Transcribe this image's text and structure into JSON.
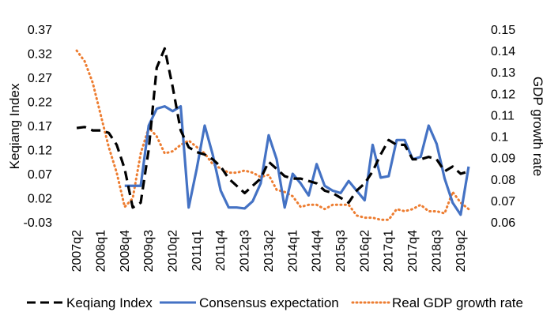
{
  "chart_data": {
    "type": "line",
    "categories": [
      "2007q2",
      "2007q3",
      "2007q4",
      "2008q1",
      "2008q2",
      "2008q3",
      "2008q4",
      "2009q1",
      "2009q2",
      "2009q3",
      "2009q4",
      "2010q1",
      "2010q2",
      "2010q3",
      "2010q4",
      "2011q1",
      "2011q2",
      "2011q3",
      "2011q4",
      "2012q1",
      "2012q2",
      "2012q3",
      "2012q4",
      "2013q1",
      "2013q2",
      "2013q3",
      "2013q4",
      "2014q1",
      "2014q2",
      "2014q3",
      "2014q4",
      "2015q1",
      "2015q2",
      "2015q3",
      "2015q4",
      "2016q1",
      "2016q2",
      "2016q3",
      "2016q4",
      "2017q1",
      "2017q2",
      "2017q3",
      "2017q4",
      "2018q1",
      "2018q2",
      "2018q3",
      "2018q4",
      "2019q1",
      "2019q2",
      "2019q3"
    ],
    "tick_labels": [
      "2007q2",
      "2008q1",
      "2008q4",
      "2009q3",
      "2010q2",
      "2011q1",
      "2011q4",
      "2012q3",
      "2013q2",
      "2014q1",
      "2014q4",
      "2015q3",
      "2016q2",
      "2017q1",
      "2017q4",
      "2018q3",
      "2019q2"
    ],
    "ylabel": "Keqiang Index",
    "y2label": "GDP growth rate",
    "ylim": [
      -0.03,
      0.37
    ],
    "y_ticks": [
      "0.37",
      "0.32",
      "0.27",
      "0.22",
      "0.17",
      "0.12",
      "0.07",
      "0.02",
      "-0.03"
    ],
    "y2lim": [
      0.06,
      0.15
    ],
    "y2_ticks": [
      "0.15",
      "0.14",
      "0.13",
      "0.12",
      "0.11",
      "0.1",
      "0.09",
      "0.08",
      "0.07",
      "0.06"
    ],
    "legend_position": "bottom",
    "grid": false,
    "series": [
      {
        "name": "Keqiang Index",
        "axis": "left",
        "color": "#000000",
        "style": "dashed",
        "values": [
          0.165,
          0.167,
          0.16,
          0.16,
          0.155,
          0.13,
          0.08,
          0.0,
          0.01,
          0.12,
          0.29,
          0.33,
          0.25,
          0.16,
          0.125,
          0.115,
          0.11,
          0.1,
          0.085,
          0.06,
          0.045,
          0.03,
          0.045,
          0.06,
          0.095,
          0.08,
          0.065,
          0.06,
          0.06,
          0.055,
          0.05,
          0.035,
          0.03,
          0.02,
          0.01,
          0.035,
          0.05,
          0.075,
          0.11,
          0.14,
          0.13,
          0.13,
          0.1,
          0.1,
          0.105,
          0.1,
          0.075,
          0.085,
          0.07,
          0.075
        ]
      },
      {
        "name": "Consensus expectation",
        "axis": "left",
        "color": "#4472C4",
        "style": "solid",
        "values": [
          null,
          null,
          null,
          null,
          null,
          null,
          0.045,
          0.045,
          0.045,
          0.17,
          0.205,
          0.21,
          0.2,
          0.21,
          0.0,
          0.08,
          0.17,
          0.11,
          0.035,
          0.0,
          0.0,
          -0.002,
          0.013,
          0.05,
          0.15,
          0.1,
          0.0,
          0.07,
          0.05,
          0.025,
          0.09,
          0.045,
          0.035,
          0.03,
          0.055,
          0.035,
          0.015,
          0.13,
          0.062,
          0.065,
          0.14,
          0.14,
          0.1,
          0.105,
          0.17,
          0.132,
          0.06,
          0.01,
          -0.015,
          0.085
        ]
      },
      {
        "name": "Real GDP growth rate",
        "axis": "right",
        "color": "#ED7D31",
        "style": "dotted",
        "values": [
          0.14,
          0.135,
          0.125,
          0.11,
          0.095,
          0.083,
          0.067,
          0.071,
          0.092,
          0.104,
          0.1,
          0.092,
          0.093,
          0.096,
          0.098,
          0.095,
          0.092,
          0.087,
          0.085,
          0.083,
          0.083,
          0.084,
          0.083,
          0.081,
          0.082,
          0.075,
          0.074,
          0.072,
          0.067,
          0.068,
          0.068,
          0.066,
          0.068,
          0.068,
          0.068,
          0.063,
          0.062,
          0.062,
          0.061,
          0.061,
          0.066,
          0.065,
          0.066,
          0.068,
          0.065,
          0.065,
          0.064,
          0.074,
          0.069,
          0.066
        ]
      }
    ]
  }
}
